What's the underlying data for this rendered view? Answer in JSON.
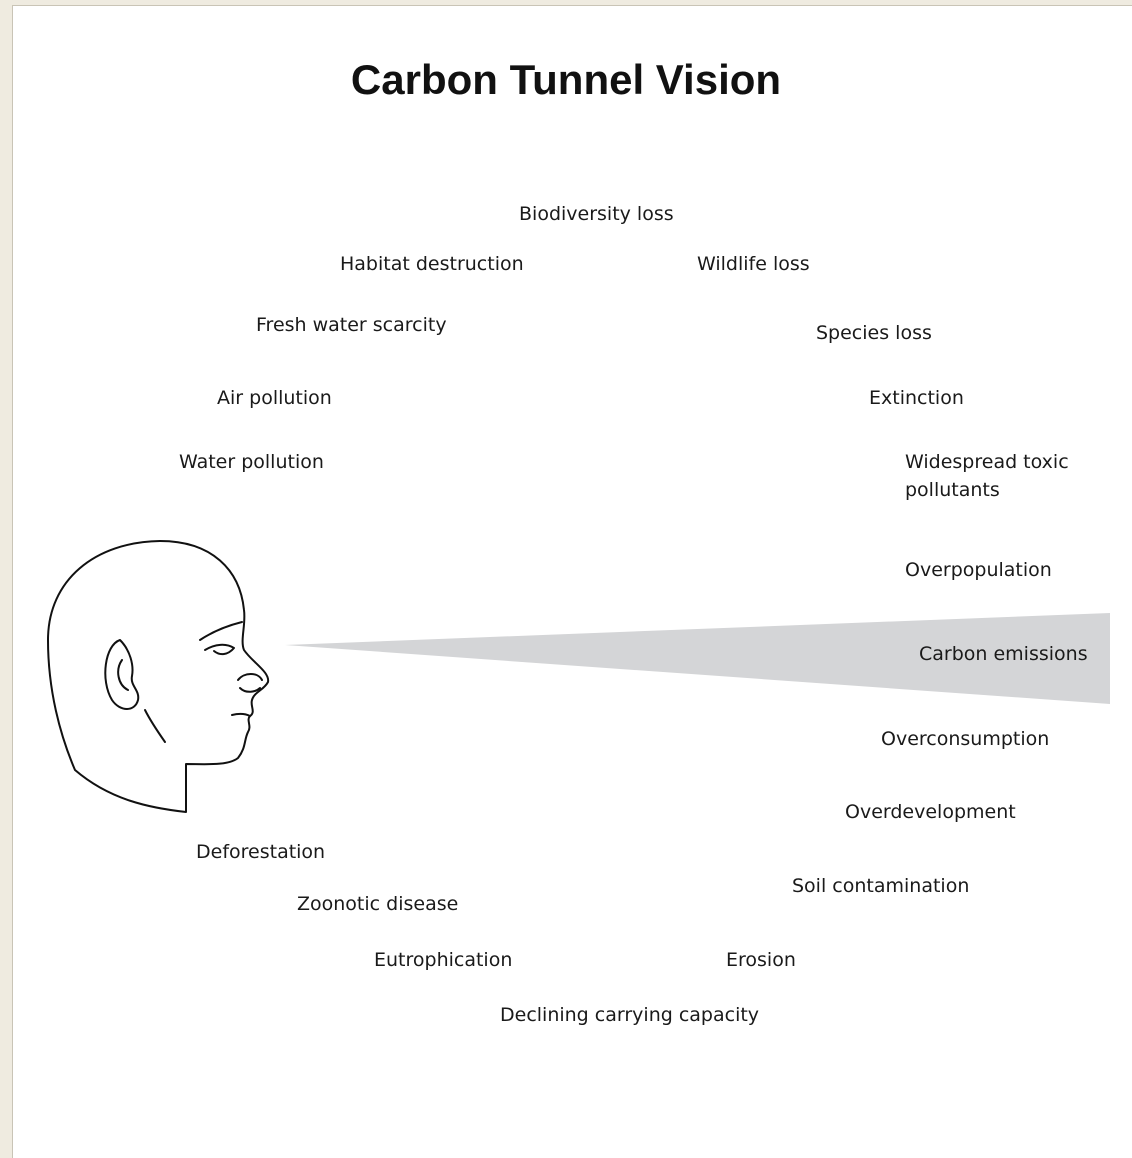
{
  "title": "Carbon Tunnel Vision",
  "labels": [
    "Biodiversity loss",
    "Habitat destruction",
    "Wildlife loss",
    "Fresh water scarcity",
    "Species loss",
    "Air pollution",
    "Extinction",
    "Water pollution",
    "Widespread toxic pollutants",
    "Overpopulation",
    "Carbon emissions",
    "Overconsumption",
    "Overdevelopment",
    "Soil contamination",
    "Deforestation",
    "Zoonotic disease",
    "Eutrophication",
    "Erosion",
    "Declining carrying capacity"
  ]
}
